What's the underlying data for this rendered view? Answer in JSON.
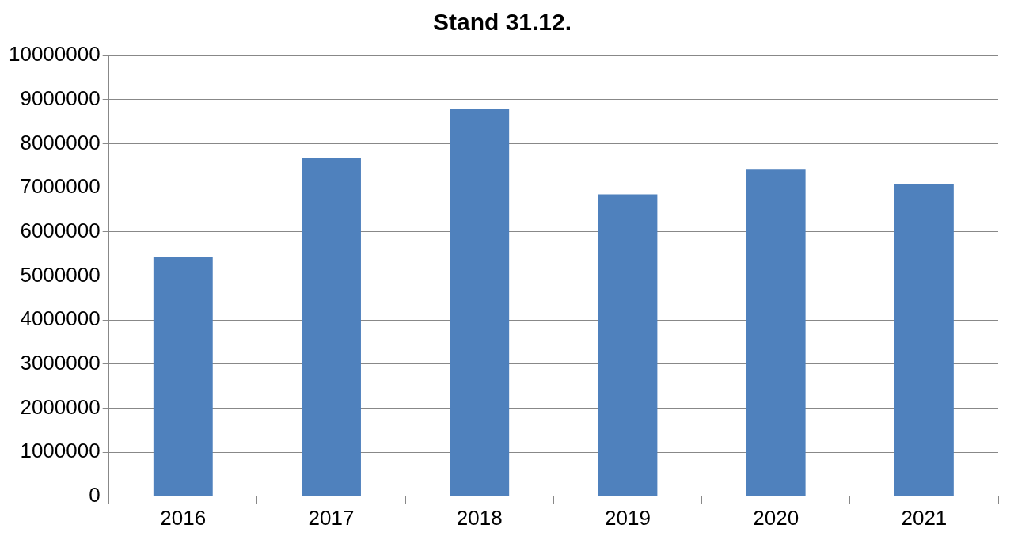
{
  "chart_data": {
    "type": "bar",
    "title": "Stand 31.12.",
    "categories": [
      "2016",
      "2017",
      "2018",
      "2019",
      "2020",
      "2021"
    ],
    "values": [
      5440000,
      7670000,
      8780000,
      6850000,
      7410000,
      7090000
    ],
    "color": "#4f81bd",
    "ylim": [
      0,
      10000000
    ],
    "yticks": [
      0,
      1000000,
      2000000,
      3000000,
      4000000,
      5000000,
      6000000,
      7000000,
      8000000,
      9000000,
      10000000
    ],
    "grid": "y",
    "legend": false
  }
}
